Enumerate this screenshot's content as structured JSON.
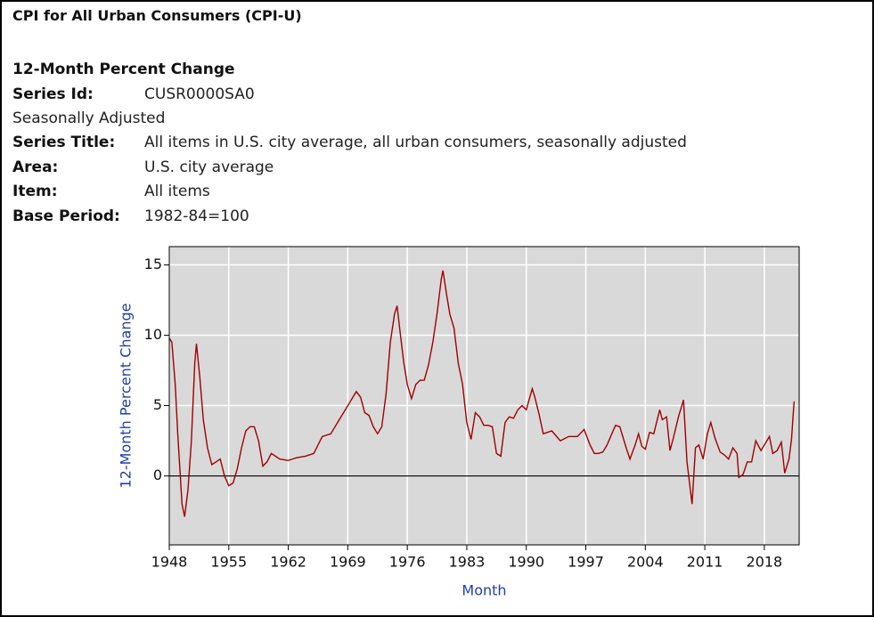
{
  "header": {
    "title": "CPI for All Urban Consumers (CPI-U)"
  },
  "series_info": {
    "heading": "12-Month Percent Change",
    "fields": [
      {
        "label": "Series Id:",
        "value": "CUSR0000SA0"
      },
      {
        "note": "Seasonally Adjusted"
      },
      {
        "label": "Series Title:",
        "value": "All items in U.S. city average, all urban consumers, seasonally adjusted"
      },
      {
        "label": "Area:",
        "value": "U.S. city average"
      },
      {
        "label": "Item:",
        "value": "All items"
      },
      {
        "label": "Base Period:",
        "value": "1982-84=100"
      }
    ]
  },
  "chart_data": {
    "type": "line",
    "x_label": "Month",
    "y_label": "12-Month Percent Change",
    "color": "#a00000",
    "grid": true,
    "xlim": [
      1948,
      2022.1
    ],
    "ylim": [
      -4.9,
      16.3
    ],
    "xticks": [
      1948,
      1955,
      1962,
      1969,
      1976,
      1983,
      1990,
      1997,
      2004,
      2011,
      2018
    ],
    "yticks": [
      0,
      5,
      10,
      15
    ],
    "x": [
      1948.0,
      1948.3,
      1948.7,
      1949.0,
      1949.5,
      1949.8,
      1950.2,
      1950.6,
      1951.0,
      1951.2,
      1951.6,
      1952.0,
      1952.5,
      1953.0,
      1953.5,
      1954.0,
      1954.5,
      1955.0,
      1955.5,
      1956.0,
      1956.5,
      1957.0,
      1957.5,
      1958.0,
      1958.5,
      1959.0,
      1959.5,
      1960.0,
      1961.0,
      1962.0,
      1963.0,
      1964.0,
      1965.0,
      1966.0,
      1967.0,
      1968.0,
      1969.0,
      1970.0,
      1970.5,
      1971.0,
      1971.5,
      1972.0,
      1972.5,
      1973.0,
      1973.5,
      1974.0,
      1974.5,
      1974.8,
      1975.2,
      1975.6,
      1976.0,
      1976.5,
      1977.0,
      1977.5,
      1978.0,
      1978.5,
      1979.0,
      1979.5,
      1980.0,
      1980.2,
      1980.6,
      1981.0,
      1981.5,
      1982.0,
      1982.5,
      1983.0,
      1983.5,
      1984.0,
      1984.5,
      1985.0,
      1985.5,
      1986.0,
      1986.5,
      1987.0,
      1987.5,
      1988.0,
      1988.5,
      1989.0,
      1989.5,
      1990.0,
      1990.7,
      1991.0,
      1991.5,
      1992.0,
      1993.0,
      1994.0,
      1995.0,
      1996.0,
      1996.8,
      1997.5,
      1998.0,
      1998.5,
      1999.0,
      1999.5,
      2000.0,
      2000.5,
      2001.0,
      2001.8,
      2002.2,
      2002.8,
      2003.2,
      2003.6,
      2004.0,
      2004.5,
      2005.0,
      2005.7,
      2006.0,
      2006.5,
      2006.9,
      2007.3,
      2007.9,
      2008.5,
      2008.9,
      2009.3,
      2009.5,
      2009.9,
      2010.3,
      2010.8,
      2011.3,
      2011.7,
      2012.2,
      2012.8,
      2013.3,
      2013.8,
      2014.3,
      2014.8,
      2015.0,
      2015.5,
      2016.0,
      2016.5,
      2017.0,
      2017.6,
      2018.2,
      2018.6,
      2019.0,
      2019.5,
      2020.0,
      2020.4,
      2020.9,
      2021.2,
      2021.5
    ],
    "values": [
      9.8,
      9.5,
      6.5,
      3.0,
      -2.0,
      -2.9,
      -1.0,
      2.5,
      8.0,
      9.4,
      7.0,
      4.0,
      2.0,
      0.8,
      1.0,
      1.2,
      0.0,
      -0.7,
      -0.5,
      0.5,
      2.0,
      3.2,
      3.5,
      3.5,
      2.5,
      0.7,
      1.0,
      1.6,
      1.2,
      1.1,
      1.3,
      1.4,
      1.6,
      2.8,
      3.0,
      4.0,
      5.0,
      6.0,
      5.6,
      4.5,
      4.3,
      3.5,
      3.0,
      3.5,
      5.8,
      9.5,
      11.5,
      12.1,
      10.0,
      8.0,
      6.5,
      5.5,
      6.5,
      6.8,
      6.8,
      7.9,
      9.5,
      11.5,
      14.0,
      14.6,
      13.0,
      11.5,
      10.5,
      8.0,
      6.5,
      3.8,
      2.6,
      4.5,
      4.2,
      3.6,
      3.6,
      3.5,
      1.6,
      1.4,
      3.8,
      4.2,
      4.1,
      4.7,
      5.0,
      4.7,
      6.2,
      5.6,
      4.4,
      3.0,
      3.2,
      2.5,
      2.8,
      2.8,
      3.3,
      2.2,
      1.6,
      1.6,
      1.7,
      2.2,
      2.9,
      3.6,
      3.5,
      1.9,
      1.2,
      2.2,
      3.0,
      2.1,
      1.9,
      3.1,
      3.0,
      4.7,
      4.0,
      4.2,
      1.8,
      2.7,
      4.2,
      5.4,
      1.0,
      -1.0,
      -2.0,
      2.0,
      2.2,
      1.2,
      3.0,
      3.8,
      2.7,
      1.7,
      1.5,
      1.2,
      2.0,
      1.6,
      -0.1,
      0.1,
      1.0,
      1.0,
      2.5,
      1.8,
      2.4,
      2.8,
      1.6,
      1.8,
      2.4,
      0.2,
      1.2,
      2.6,
      5.3
    ]
  }
}
